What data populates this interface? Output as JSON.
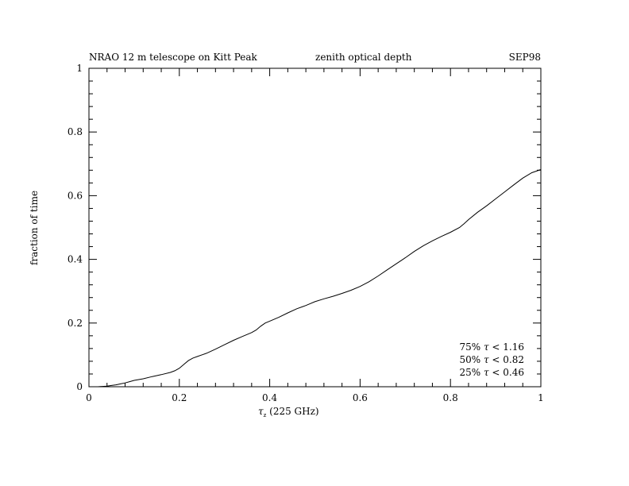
{
  "header": {
    "left": "NRAO 12 m telescope on Kitt Peak",
    "center": "zenith optical depth",
    "right": "SEP98"
  },
  "chart_data": {
    "type": "line",
    "title": "",
    "xlabel_symbol": "τ",
    "xlabel_subscript": "z",
    "xlabel_rest": " (225 GHz)",
    "ylabel": "fraction of time",
    "xlim": [
      0,
      1
    ],
    "ylim": [
      0,
      1
    ],
    "xticks": [
      "0",
      "0.2",
      "0.4",
      "0.6",
      "0.8",
      "1"
    ],
    "yticks": [
      "0",
      "0.2",
      "0.4",
      "0.6",
      "0.8",
      "1"
    ],
    "grid": false,
    "legend": "none",
    "series": [
      {
        "x": [
          0,
          0.02,
          0.04,
          0.05,
          0.06,
          0.07,
          0.08,
          0.09,
          0.1,
          0.12,
          0.14,
          0.16,
          0.18,
          0.19,
          0.2,
          0.21,
          0.22,
          0.23,
          0.24,
          0.26,
          0.28,
          0.3,
          0.32,
          0.34,
          0.36,
          0.37,
          0.38,
          0.39,
          0.4,
          0.42,
          0.44,
          0.46,
          0.48,
          0.5,
          0.52,
          0.54,
          0.56,
          0.58,
          0.6,
          0.62,
          0.64,
          0.66,
          0.68,
          0.7,
          0.72,
          0.74,
          0.76,
          0.78,
          0.8,
          0.82,
          0.83,
          0.84,
          0.86,
          0.88,
          0.9,
          0.92,
          0.94,
          0.96,
          0.98,
          1.0
        ],
        "y": [
          0,
          0,
          0.002,
          0.004,
          0.006,
          0.009,
          0.012,
          0.016,
          0.02,
          0.025,
          0.032,
          0.038,
          0.045,
          0.05,
          0.058,
          0.07,
          0.082,
          0.09,
          0.095,
          0.105,
          0.118,
          0.132,
          0.146,
          0.158,
          0.17,
          0.178,
          0.19,
          0.2,
          0.206,
          0.218,
          0.232,
          0.245,
          0.255,
          0.267,
          0.276,
          0.284,
          0.293,
          0.303,
          0.315,
          0.33,
          0.348,
          0.367,
          0.386,
          0.405,
          0.425,
          0.443,
          0.458,
          0.472,
          0.485,
          0.5,
          0.512,
          0.525,
          0.548,
          0.568,
          0.59,
          0.612,
          0.634,
          0.655,
          0.672,
          0.682
        ]
      }
    ],
    "annotations": [
      {
        "pct": "75%",
        "sym": "τ",
        "rel": "<",
        "val": "1.16"
      },
      {
        "pct": "50%",
        "sym": "τ",
        "rel": "<",
        "val": "0.82"
      },
      {
        "pct": "25%",
        "sym": "τ",
        "rel": "<",
        "val": "0.46"
      }
    ]
  }
}
